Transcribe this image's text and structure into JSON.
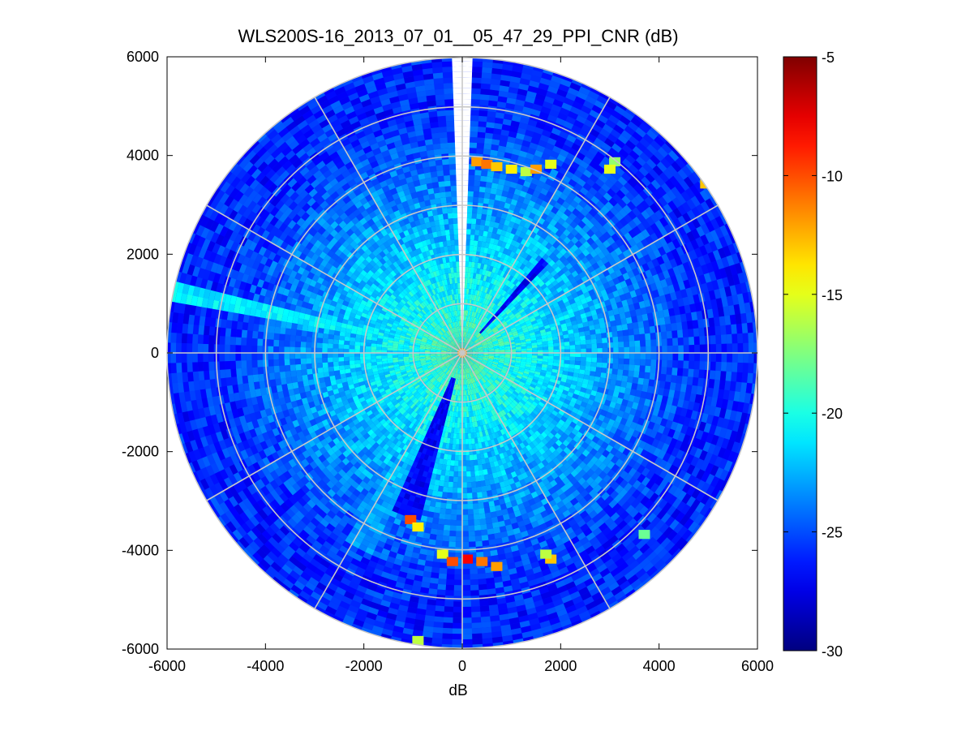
{
  "chart_data": {
    "type": "heatmap",
    "subtype": "polar-ppi",
    "title": "WLS200S-16_2013_07_01__05_47_29_PPI_CNR (dB)",
    "xlabel": "dB",
    "ylabel": "",
    "xlim": [
      -6000,
      6000
    ],
    "ylim": [
      -6000,
      6000
    ],
    "xticks": [
      -6000,
      -4000,
      -2000,
      0,
      2000,
      4000,
      6000
    ],
    "yticks": [
      6000,
      4000,
      2000,
      0,
      -2000,
      -4000,
      -6000
    ],
    "tick_labels_x": [
      "-6000",
      "-4000",
      "-2000",
      "0",
      "2000",
      "4000",
      "6000"
    ],
    "tick_labels_y": [
      "6000",
      "4000",
      "2000",
      "0",
      "-2000",
      "-4000",
      "-6000"
    ],
    "max_range": 6000,
    "range_rings": [
      1000,
      2000,
      3000,
      4000,
      5000,
      6000
    ],
    "azimuth_spokes_deg": [
      0,
      30,
      60,
      90,
      120,
      150,
      180,
      210,
      240,
      270,
      300,
      330
    ],
    "colorbar": {
      "clim": [
        -30,
        -5
      ],
      "ticks": [
        -5,
        -10,
        -15,
        -20,
        -25,
        -30
      ],
      "tick_labels": [
        "-5",
        "-10",
        "-15",
        "-20",
        "-25",
        "-30"
      ],
      "colormap": "jet"
    },
    "typical_values": {
      "near_range_lt_1000": -20,
      "mid_range_1000_3000": -23,
      "far_range_gt_3000": -26
    },
    "features": [
      {
        "kind": "blocked-sector",
        "azimuth_from_deg": 358,
        "azimuth_to_deg": 2,
        "range_from": 0,
        "range_to": 6000,
        "value": null
      },
      {
        "kind": "enhanced-sector",
        "azimuth_from_deg": 280,
        "azimuth_to_deg": 285,
        "range_from": 1500,
        "range_to": 6000,
        "value": -21
      },
      {
        "kind": "enhanced-sector",
        "azimuth_from_deg": 205,
        "azimuth_to_deg": 212,
        "range_from": 500,
        "range_to": 4500,
        "value": -23
      },
      {
        "kind": "weak-sector",
        "azimuth_from_deg": 195,
        "azimuth_to_deg": 204,
        "range_from": 500,
        "range_to": 3500,
        "value": -27
      },
      {
        "kind": "weak-sector",
        "azimuth_from_deg": 40,
        "azimuth_to_deg": 44,
        "range_from": 500,
        "range_to": 2500,
        "value": -27
      },
      {
        "kind": "hotspot",
        "x": 300,
        "y": 3850,
        "value": -12
      },
      {
        "kind": "hotspot",
        "x": 500,
        "y": 3800,
        "value": -11
      },
      {
        "kind": "hotspot",
        "x": 700,
        "y": 3750,
        "value": -13
      },
      {
        "kind": "hotspot",
        "x": 1000,
        "y": 3700,
        "value": -14
      },
      {
        "kind": "hotspot",
        "x": 1300,
        "y": 3650,
        "value": -16
      },
      {
        "kind": "hotspot",
        "x": 1500,
        "y": 3700,
        "value": -12
      },
      {
        "kind": "hotspot",
        "x": 1800,
        "y": 3800,
        "value": -15
      },
      {
        "kind": "hotspot",
        "x": 3100,
        "y": 3850,
        "value": -17
      },
      {
        "kind": "hotspot",
        "x": 3000,
        "y": 3700,
        "value": -15
      },
      {
        "kind": "hotspot",
        "x": 4950,
        "y": 3400,
        "value": -13
      },
      {
        "kind": "hotspot",
        "x": -1050,
        "y": -3400,
        "value": -10
      },
      {
        "kind": "hotspot",
        "x": -900,
        "y": -3550,
        "value": -14
      },
      {
        "kind": "hotspot",
        "x": -400,
        "y": -4100,
        "value": -15
      },
      {
        "kind": "hotspot",
        "x": -200,
        "y": -4250,
        "value": -10
      },
      {
        "kind": "hotspot",
        "x": 100,
        "y": -4200,
        "value": -8
      },
      {
        "kind": "hotspot",
        "x": 400,
        "y": -4250,
        "value": -11
      },
      {
        "kind": "hotspot",
        "x": 700,
        "y": -4350,
        "value": -12
      },
      {
        "kind": "hotspot",
        "x": 1800,
        "y": -4200,
        "value": -13
      },
      {
        "kind": "hotspot",
        "x": 1700,
        "y": -4100,
        "value": -16
      },
      {
        "kind": "hotspot",
        "x": 3700,
        "y": -3700,
        "value": -18
      },
      {
        "kind": "hotspot",
        "x": -900,
        "y": -5850,
        "value": -16
      }
    ]
  }
}
